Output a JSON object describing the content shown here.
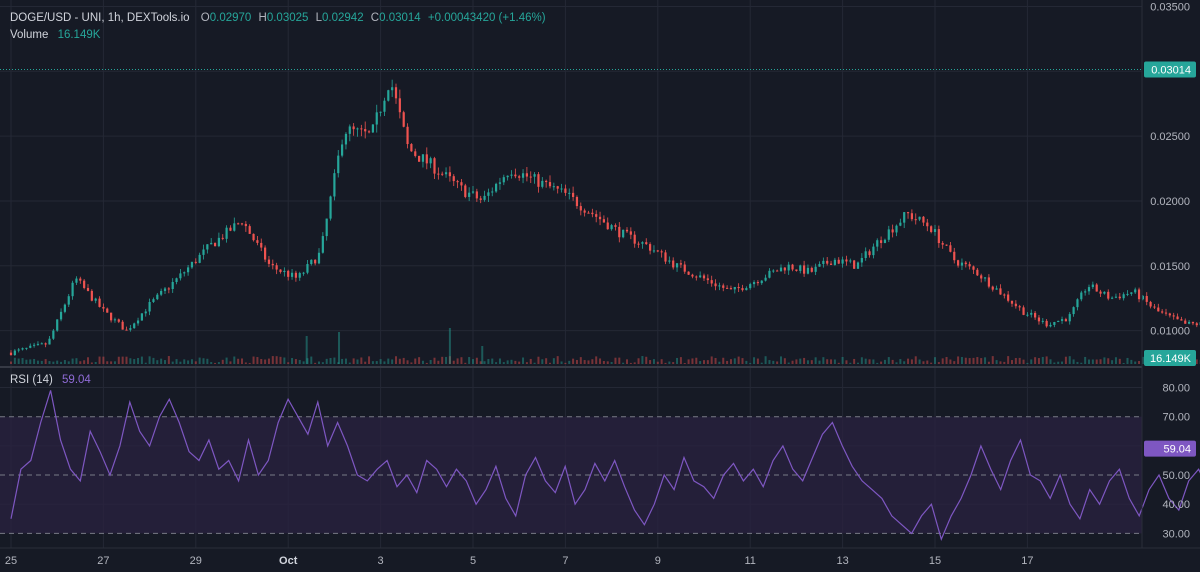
{
  "header": {
    "symbol": "DOGE/USD - UNI, 1h, DEXTools.io",
    "ohlc": [
      {
        "key": "O",
        "value": "0.02970"
      },
      {
        "key": "H",
        "value": "0.03025"
      },
      {
        "key": "L",
        "value": "0.02942"
      },
      {
        "key": "C",
        "value": "0.03014"
      }
    ],
    "change": "+0.00043420 (+1.46%)",
    "volume_label": "Volume",
    "volume_value": "16.149K"
  },
  "rsi_legend": {
    "label": "RSI (14)",
    "value": "59.04"
  },
  "colors": {
    "background": "#161a25",
    "up": "#26a69a",
    "down": "#ef5350",
    "rsi": "#7e57c2",
    "rsi_band": "#2a2240",
    "grid": "#242835",
    "text": "#b2b5be"
  },
  "chart_data": [
    {
      "type": "candlestick",
      "title": "DOGE/USD - UNI, 1h, DEXTools.io",
      "x_ticks": [
        "25",
        "27",
        "29",
        "Oct",
        "3",
        "5",
        "7",
        "9",
        "11",
        "13",
        "15",
        "17"
      ],
      "y_ticks": [
        "0.03500",
        "0.03000",
        "0.02500",
        "0.02000",
        "0.01500",
        "0.01000"
      ],
      "ylim": [
        0.0075,
        0.0355
      ],
      "last_price": "0.03014",
      "last_volume": "16.149K",
      "grid": true,
      "close_path": [
        [
          0,
          0.0083
        ],
        [
          0.8,
          0.009
        ],
        [
          1.4,
          0.014
        ],
        [
          2.0,
          0.0115
        ],
        [
          2.5,
          0.01
        ],
        [
          3.0,
          0.012
        ],
        [
          3.6,
          0.014
        ],
        [
          4.3,
          0.0165
        ],
        [
          5.0,
          0.0185
        ],
        [
          5.6,
          0.015
        ],
        [
          6.2,
          0.014
        ],
        [
          6.7,
          0.016
        ],
        [
          7.2,
          0.0255
        ],
        [
          7.8,
          0.025
        ],
        [
          8.2,
          0.0295
        ],
        [
          8.6,
          0.024
        ],
        [
          9.2,
          0.0225
        ],
        [
          9.7,
          0.021
        ],
        [
          10.2,
          0.02
        ],
        [
          10.8,
          0.0225
        ],
        [
          11.4,
          0.0215
        ],
        [
          12.0,
          0.0205
        ],
        [
          12.6,
          0.019
        ],
        [
          13.2,
          0.0175
        ],
        [
          13.8,
          0.0165
        ],
        [
          14.4,
          0.015
        ],
        [
          15.0,
          0.014
        ],
        [
          15.6,
          0.013
        ],
        [
          16.2,
          0.014
        ],
        [
          16.8,
          0.015
        ],
        [
          17.3,
          0.0145
        ],
        [
          17.8,
          0.0155
        ],
        [
          18.3,
          0.015
        ],
        [
          18.8,
          0.017
        ],
        [
          19.4,
          0.019
        ],
        [
          19.9,
          0.018
        ],
        [
          20.4,
          0.0155
        ],
        [
          20.9,
          0.0145
        ],
        [
          21.4,
          0.013
        ],
        [
          21.9,
          0.0115
        ],
        [
          22.4,
          0.0105
        ],
        [
          22.9,
          0.011
        ],
        [
          23.3,
          0.0135
        ],
        [
          23.8,
          0.0125
        ],
        [
          24.3,
          0.013
        ],
        [
          24.8,
          0.0115
        ],
        [
          25.4,
          0.0105
        ],
        [
          26.0,
          0.0105
        ],
        [
          26.6,
          0.01
        ],
        [
          27.2,
          0.0105
        ],
        [
          27.8,
          0.009
        ],
        [
          28.4,
          0.0085
        ],
        [
          29.0,
          0.0088
        ],
        [
          29.6,
          0.0085
        ],
        [
          30.2,
          0.009
        ],
        [
          30.8,
          0.0085
        ],
        [
          31.4,
          0.009
        ],
        [
          32.0,
          0.0085
        ],
        [
          32.6,
          0.009
        ],
        [
          33.2,
          0.0092
        ],
        [
          33.8,
          0.0087
        ],
        [
          34.4,
          0.0095
        ],
        [
          35.0,
          0.0105
        ],
        [
          35.5,
          0.011
        ],
        [
          36.0,
          0.0125
        ],
        [
          36.5,
          0.0135
        ],
        [
          37.0,
          0.0125
        ],
        [
          37.5,
          0.0115
        ],
        [
          38.0,
          0.0105
        ],
        [
          38.5,
          0.011
        ],
        [
          38.9,
          0.019
        ],
        [
          39.4,
          0.021
        ],
        [
          39.9,
          0.0265
        ],
        [
          40.4,
          0.029
        ],
        [
          40.9,
          0.026
        ],
        [
          41.3,
          0.028
        ],
        [
          41.7,
          0.0245
        ],
        [
          42.1,
          0.0275
        ],
        [
          42.5,
          0.0245
        ],
        [
          42.9,
          0.024
        ],
        [
          43.3,
          0.0275
        ],
        [
          43.7,
          0.03
        ]
      ],
      "volume_spikes": [
        [
          6.4,
          28
        ],
        [
          7.1,
          32
        ],
        [
          9.5,
          36
        ],
        [
          10.2,
          18
        ],
        [
          38.9,
          44
        ],
        [
          40.4,
          40
        ],
        [
          41.5,
          32
        ]
      ],
      "volume_last": "16.149K"
    },
    {
      "type": "line",
      "title": "RSI (14)",
      "y_ticks": [
        "80.00",
        "70.00",
        "60.00",
        "50.00",
        "40.00",
        "30.00"
      ],
      "ylim": [
        25,
        86
      ],
      "bands": [
        30,
        50,
        70
      ],
      "last_value": "59.04",
      "values": [
        35,
        52,
        55,
        68,
        79,
        62,
        52,
        48,
        65,
        58,
        50,
        60,
        75,
        65,
        60,
        70,
        76,
        68,
        58,
        55,
        62,
        52,
        55,
        48,
        62,
        50,
        55,
        68,
        76,
        70,
        64,
        75,
        60,
        68,
        60,
        50,
        48,
        52,
        55,
        46,
        50,
        44,
        55,
        52,
        46,
        52,
        48,
        40,
        45,
        53,
        42,
        36,
        50,
        56,
        48,
        44,
        53,
        40,
        45,
        54,
        48,
        55,
        46,
        38,
        33,
        40,
        50,
        45,
        56,
        48,
        46,
        42,
        50,
        54,
        48,
        52,
        46,
        55,
        60,
        52,
        48,
        56,
        64,
        68,
        60,
        53,
        48,
        45,
        42,
        36,
        33,
        30,
        36,
        40,
        28,
        36,
        42,
        50,
        60,
        52,
        45,
        55,
        62,
        50,
        48,
        42,
        50,
        40,
        35,
        45,
        40,
        48,
        52,
        42,
        36,
        45,
        50,
        42,
        38,
        48,
        52,
        45,
        38,
        34,
        42,
        54,
        48,
        44,
        52,
        46,
        55,
        60,
        52,
        46,
        40,
        44,
        52,
        48,
        57,
        68,
        60,
        52,
        46,
        44,
        55,
        48,
        54,
        58,
        46,
        50,
        45,
        55,
        52,
        48,
        58,
        60,
        55,
        48,
        62,
        55,
        50,
        44,
        52,
        56,
        48,
        62,
        68,
        60,
        54,
        65,
        72,
        62,
        58,
        68,
        62,
        55,
        60,
        48,
        50,
        55,
        45,
        52,
        78,
        72,
        65,
        70,
        78,
        82,
        70,
        66,
        60,
        55,
        58,
        52,
        46,
        55,
        50,
        58,
        48,
        45,
        52,
        50,
        48,
        55,
        59.04
      ]
    }
  ]
}
